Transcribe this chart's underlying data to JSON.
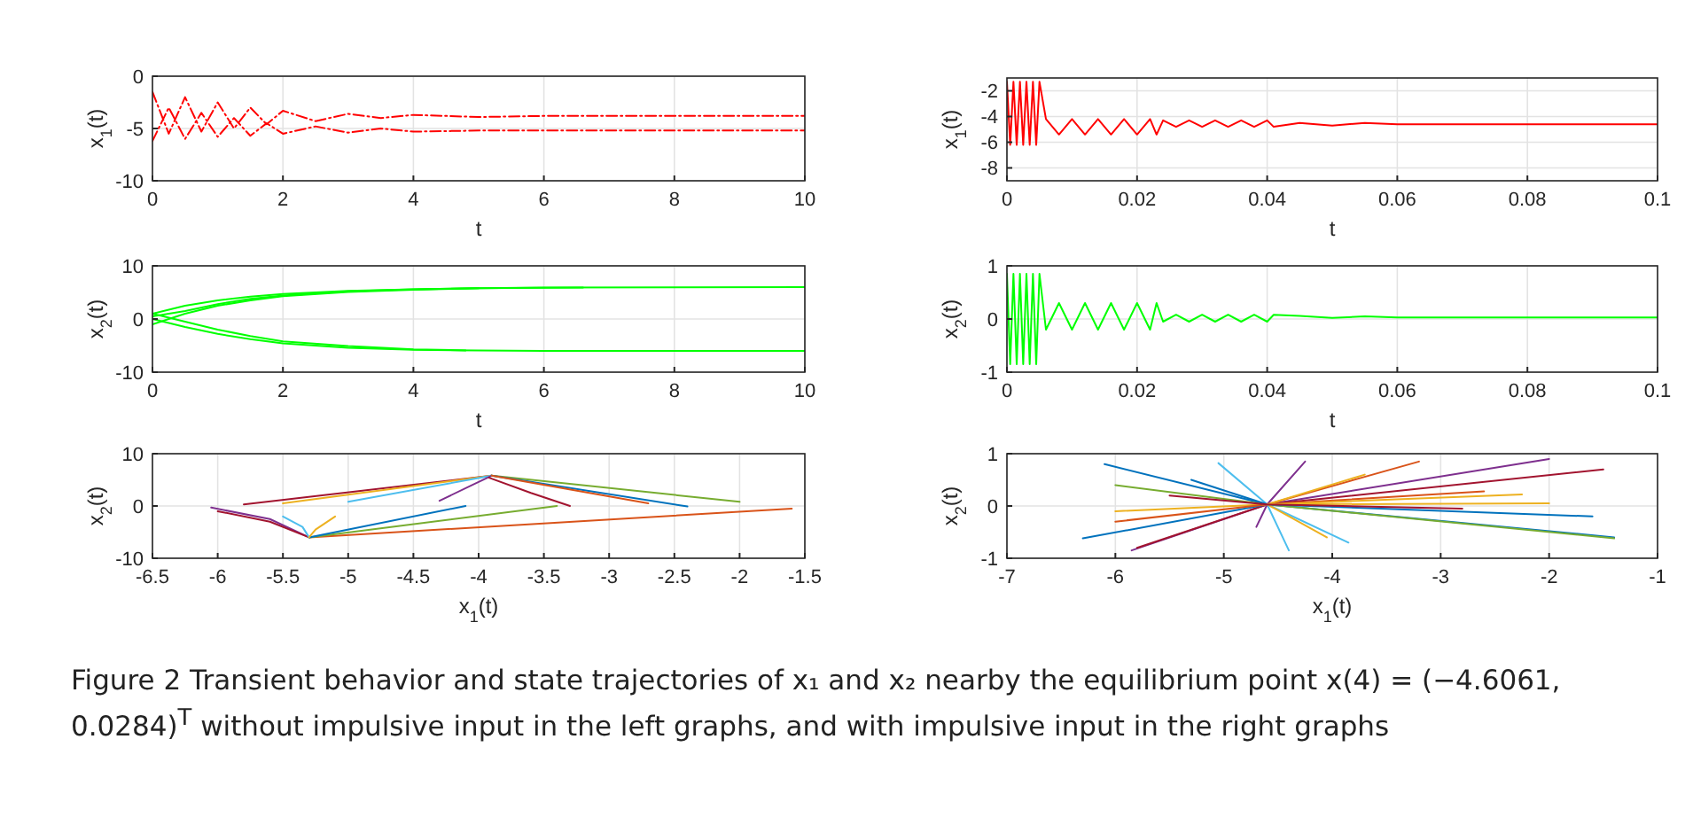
{
  "chart_data": [
    {
      "type": "line",
      "xlabel": "t",
      "ylabel": "x$_{1}$(t)",
      "xlim": [
        0,
        10
      ],
      "xticks": [
        0,
        2,
        4,
        6,
        8,
        10
      ],
      "ylim": [
        -10,
        0
      ],
      "yticks": [
        -10,
        -5,
        0
      ],
      "grid": true,
      "line_style": "dashed",
      "annotations": [
        "Figure 2 Transient behavior and state trajectories of x₁ and x₂ nearby the equilibrium point x(4) = (−4.6061, 0.0284)$^{T}$ without impulsive input in the left graphs, and with impulsive input in the right graphs"
      ],
      "series": [
        {
          "color": "#ff0000",
          "x": [
            0,
            0.25,
            0.5,
            0.75,
            1,
            1.25,
            1.5,
            1.75,
            2,
            2.5,
            3,
            3.5,
            4,
            5,
            6,
            10
          ],
          "values": [
            -1.5,
            -5.5,
            -2,
            -5.3,
            -2.5,
            -5,
            -3,
            -4.6,
            -3.3,
            -4.3,
            -3.6,
            -4,
            -3.7,
            -3.9,
            -3.8,
            -3.8
          ]
        },
        {
          "color": "#ff0000",
          "x": [
            0,
            0.25,
            0.5,
            0.75,
            1,
            1.25,
            1.5,
            1.75,
            2,
            2.5,
            3,
            3.5,
            4,
            5,
            6,
            10
          ],
          "values": [
            -6.2,
            -3,
            -6,
            -3.5,
            -5.8,
            -4,
            -5.7,
            -4.5,
            -5.5,
            -4.8,
            -5.4,
            -5,
            -5.3,
            -5.2,
            -5.2,
            -5.2
          ]
        }
      ]
    },
    {
      "type": "line",
      "xlabel": "t",
      "ylabel": "x$_{2}$(t)",
      "xlim": [
        0,
        10
      ],
      "xticks": [
        0,
        2,
        4,
        6,
        8,
        10
      ],
      "ylim": [
        -10,
        10
      ],
      "yticks": [
        -10,
        0,
        10
      ],
      "grid": true,
      "series": [
        {
          "color": "#00ff00",
          "x": [
            0,
            0.5,
            1,
            1.5,
            2,
            3,
            4,
            5,
            6,
            10
          ],
          "values": [
            1,
            2.5,
            3.5,
            4.2,
            4.7,
            5.3,
            5.6,
            5.8,
            5.9,
            6
          ]
        },
        {
          "color": "#00ff00",
          "x": [
            0,
            0.5,
            1,
            1.5,
            2,
            3,
            4,
            5
          ],
          "values": [
            -1,
            1,
            2.5,
            3.5,
            4.3,
            5.1,
            5.5,
            5.8
          ]
        },
        {
          "color": "#00ff00",
          "x": [
            0,
            0.5,
            1,
            1.5,
            2,
            3,
            4,
            5,
            6.6
          ],
          "values": [
            0.5,
            1.5,
            2.8,
            3.8,
            4.4,
            5.2,
            5.6,
            5.8,
            5.9
          ]
        },
        {
          "color": "#00ff00",
          "x": [
            0,
            0.5,
            1,
            1.5,
            2,
            3,
            4,
            5,
            6,
            10
          ],
          "values": [
            0,
            -1.5,
            -2.8,
            -3.8,
            -4.6,
            -5.4,
            -5.8,
            -5.9,
            -6,
            -6
          ]
        },
        {
          "color": "#00ff00",
          "x": [
            0,
            0.5,
            1,
            1.5,
            2,
            3,
            4,
            4.8
          ],
          "values": [
            1,
            -0.5,
            -2,
            -3.2,
            -4.2,
            -5.1,
            -5.7,
            -5.9
          ]
        }
      ]
    },
    {
      "type": "line",
      "xlabel": "x$_{1}$(t)",
      "ylabel": "x$_{2}$(t)",
      "xlim": [
        -6.5,
        -1.5
      ],
      "xticks": [
        -6.5,
        -6,
        -5.5,
        -5,
        -4.5,
        -4,
        -3.5,
        -3,
        -2.5,
        -2,
        -1.5
      ],
      "ylim": [
        -10,
        10
      ],
      "yticks": [
        -10,
        0,
        10
      ],
      "grid": true,
      "series": [
        {
          "color": "#a2142f",
          "x": [
            -5.8,
            -3.9
          ],
          "values": [
            0.3,
            5.8
          ]
        },
        {
          "color": "#edb120",
          "x": [
            -5.5,
            -3.9
          ],
          "values": [
            0.5,
            5.8
          ]
        },
        {
          "color": "#4dbeee",
          "x": [
            -5.0,
            -3.9
          ],
          "values": [
            0.8,
            5.8
          ]
        },
        {
          "color": "#7e2f8e",
          "x": [
            -4.3,
            -4.05,
            -3.9
          ],
          "values": [
            1.0,
            4.0,
            5.8
          ]
        },
        {
          "color": "#77ac30",
          "x": [
            -2.0,
            -3.9
          ],
          "values": [
            0.8,
            5.8
          ]
        },
        {
          "color": "#0072bd",
          "x": [
            -2.4,
            -3.9
          ],
          "values": [
            -0.1,
            5.8
          ]
        },
        {
          "color": "#d95319",
          "x": [
            -2.7,
            -3.9
          ],
          "values": [
            0.5,
            5.8
          ]
        },
        {
          "color": "#a2142f",
          "x": [
            -3.3,
            -3.6,
            -3.92
          ],
          "values": [
            0,
            2.5,
            5.4
          ]
        },
        {
          "color": "#d95319",
          "x": [
            -1.6,
            -5.3
          ],
          "values": [
            -0.5,
            -6
          ]
        },
        {
          "color": "#7e2f8e",
          "x": [
            -6.05,
            -5.6,
            -5.3
          ],
          "values": [
            -0.3,
            -2.5,
            -6
          ]
        },
        {
          "color": "#a2142f",
          "x": [
            -6.0,
            -5.6,
            -5.3
          ],
          "values": [
            -1.0,
            -3,
            -6
          ]
        },
        {
          "color": "#77ac30",
          "x": [
            -3.4,
            -5.3
          ],
          "values": [
            0,
            -6
          ]
        },
        {
          "color": "#0072bd",
          "x": [
            -4.1,
            -5.3
          ],
          "values": [
            0,
            -6
          ]
        },
        {
          "color": "#4dbeee",
          "x": [
            -5.5,
            -5.35,
            -5.3
          ],
          "values": [
            -2,
            -4,
            -6
          ]
        },
        {
          "color": "#edb120",
          "x": [
            -5.1,
            -5.25,
            -5.3
          ],
          "values": [
            -2,
            -4.5,
            -6
          ]
        }
      ]
    },
    {
      "type": "line",
      "xlabel": "t",
      "ylabel": "x$_{1}$(t)",
      "xlim": [
        0,
        0.1
      ],
      "xticks": [
        0,
        0.02,
        0.04,
        0.06,
        0.08,
        0.1
      ],
      "ylim": [
        -9,
        -1
      ],
      "yticks": [
        -8,
        -6,
        -4,
        -2
      ],
      "grid": true,
      "series": [
        {
          "color": "#ff0000",
          "x": [
            0,
            0.0005,
            0.001,
            0.0015,
            0.002,
            0.0025,
            0.003,
            0.0035,
            0.004,
            0.0045,
            0.005,
            0.006,
            0.008,
            0.01,
            0.012,
            0.014,
            0.016,
            0.018,
            0.02,
            0.022,
            0.023,
            0.024,
            0.026,
            0.028,
            0.03,
            0.032,
            0.034,
            0.036,
            0.038,
            0.04,
            0.041,
            0.045,
            0.05,
            0.055,
            0.06,
            0.1
          ],
          "values": [
            -1.3,
            -6.2,
            -1.3,
            -6.2,
            -1.3,
            -6.2,
            -1.3,
            -6.2,
            -1.3,
            -6.2,
            -1.3,
            -4.2,
            -5.4,
            -4.2,
            -5.4,
            -4.2,
            -5.4,
            -4.2,
            -5.4,
            -4.2,
            -5.4,
            -4.3,
            -4.8,
            -4.3,
            -4.8,
            -4.3,
            -4.8,
            -4.3,
            -4.8,
            -4.3,
            -4.8,
            -4.5,
            -4.7,
            -4.5,
            -4.6,
            -4.6
          ]
        }
      ]
    },
    {
      "type": "line",
      "xlabel": "t",
      "ylabel": "x$_{2}$(t)",
      "xlim": [
        0,
        0.1
      ],
      "xticks": [
        0,
        0.02,
        0.04,
        0.06,
        0.08,
        0.1
      ],
      "ylim": [
        -1,
        1
      ],
      "yticks": [
        -1,
        0,
        1
      ],
      "grid": true,
      "series": [
        {
          "color": "#00ff00",
          "x": [
            0,
            0.0005,
            0.001,
            0.0015,
            0.002,
            0.0025,
            0.003,
            0.0035,
            0.004,
            0.0045,
            0.005,
            0.006,
            0.008,
            0.01,
            0.012,
            0.014,
            0.016,
            0.018,
            0.02,
            0.022,
            0.023,
            0.024,
            0.026,
            0.028,
            0.03,
            0.032,
            0.034,
            0.036,
            0.038,
            0.04,
            0.041,
            0.045,
            0.05,
            0.055,
            0.06,
            0.1
          ],
          "values": [
            0.85,
            -0.85,
            0.85,
            -0.85,
            0.85,
            -0.85,
            0.85,
            -0.85,
            0.85,
            -0.85,
            0.85,
            -0.2,
            0.3,
            -0.2,
            0.3,
            -0.2,
            0.3,
            -0.2,
            0.3,
            -0.2,
            0.3,
            -0.05,
            0.08,
            -0.05,
            0.08,
            -0.05,
            0.08,
            -0.05,
            0.08,
            -0.05,
            0.08,
            0.06,
            0.02,
            0.05,
            0.03,
            0.03
          ]
        }
      ]
    },
    {
      "type": "line",
      "xlabel": "x$_{1}$(t)",
      "ylabel": "x$_{2}$(t)",
      "xlim": [
        -7,
        -1
      ],
      "xticks": [
        -7,
        -6,
        -5,
        -4,
        -3,
        -2,
        -1
      ],
      "ylim": [
        -1,
        1
      ],
      "yticks": [
        -1,
        0,
        1
      ],
      "grid": true,
      "series": [
        {
          "color": "#0072bd",
          "x": [
            -6.1,
            -4.6,
            -1.4
          ],
          "values": [
            0.8,
            0.03,
            -0.6
          ]
        },
        {
          "color": "#7e2f8e",
          "x": [
            -5.85,
            -4.6,
            -2.0
          ],
          "values": [
            -0.85,
            0.03,
            0.9
          ]
        },
        {
          "color": "#77ac30",
          "x": [
            -6.0,
            -4.6,
            -1.4
          ],
          "values": [
            0.4,
            0.03,
            -0.62
          ]
        },
        {
          "color": "#a2142f",
          "x": [
            -5.8,
            -4.6,
            -1.5
          ],
          "values": [
            -0.8,
            0.03,
            0.7
          ]
        },
        {
          "color": "#0072bd",
          "x": [
            -6.3,
            -4.6
          ],
          "values": [
            -0.62,
            0.03
          ]
        },
        {
          "color": "#4dbeee",
          "x": [
            -5.05,
            -4.6,
            -4.4
          ],
          "values": [
            0.82,
            0.03,
            -0.85
          ]
        },
        {
          "color": "#7e2f8e",
          "x": [
            -4.7,
            -4.6,
            -4.25
          ],
          "values": [
            -0.4,
            0.03,
            0.85
          ]
        },
        {
          "color": "#d95319",
          "x": [
            -4.6,
            -3.2
          ],
          "values": [
            0.03,
            0.85
          ]
        },
        {
          "color": "#edb120",
          "x": [
            -6.0,
            -4.6,
            -2.0
          ],
          "values": [
            -0.1,
            0.03,
            0.05
          ]
        },
        {
          "color": "#4dbeee",
          "x": [
            -4.6,
            -3.85
          ],
          "values": [
            0.03,
            -0.7
          ]
        },
        {
          "color": "#edb120",
          "x": [
            -4.05,
            -4.6,
            -3.7
          ],
          "values": [
            -0.6,
            0.03,
            0.6
          ]
        },
        {
          "color": "#d95319",
          "x": [
            -6.0,
            -4.6,
            -2.6
          ],
          "values": [
            -0.3,
            0.03,
            0.28
          ]
        },
        {
          "color": "#0072bd",
          "x": [
            -5.3,
            -4.6,
            -1.6
          ],
          "values": [
            0.5,
            0.03,
            -0.2
          ]
        },
        {
          "color": "#edb120",
          "x": [
            -4.6,
            -2.25
          ],
          "values": [
            0.03,
            0.22
          ]
        },
        {
          "color": "#a2142f",
          "x": [
            -5.5,
            -4.6,
            -2.8
          ],
          "values": [
            0.2,
            0.03,
            -0.05
          ]
        }
      ]
    }
  ]
}
